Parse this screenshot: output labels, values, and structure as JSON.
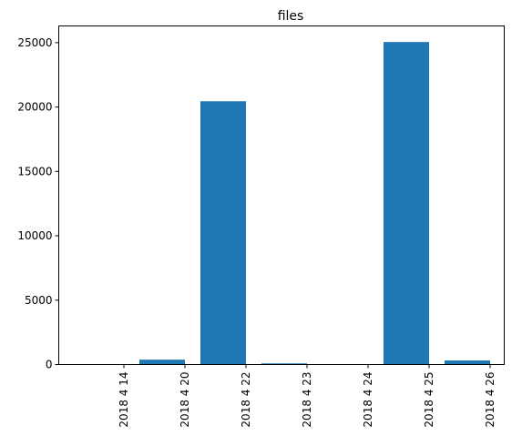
{
  "chart_data": {
    "type": "bar",
    "title": "files",
    "xlabel": "",
    "ylabel": "",
    "categories": [
      "2018 4 14",
      "2018 4 20",
      "2018 4 22",
      "2018 4 23",
      "2018 4 24",
      "2018 4 25",
      "2018 4 26"
    ],
    "values": [
      20,
      380,
      20450,
      90,
      20,
      25050,
      320
    ],
    "ylim": [
      0,
      26300
    ],
    "yticks": [
      0,
      5000,
      10000,
      15000,
      20000,
      25000
    ],
    "ytick_labels": [
      "0",
      "5000",
      "10000",
      "15000",
      "20000",
      "25000"
    ],
    "bar_color": "#1f77b4",
    "grid": false,
    "xtick_rotation": "vertical"
  }
}
